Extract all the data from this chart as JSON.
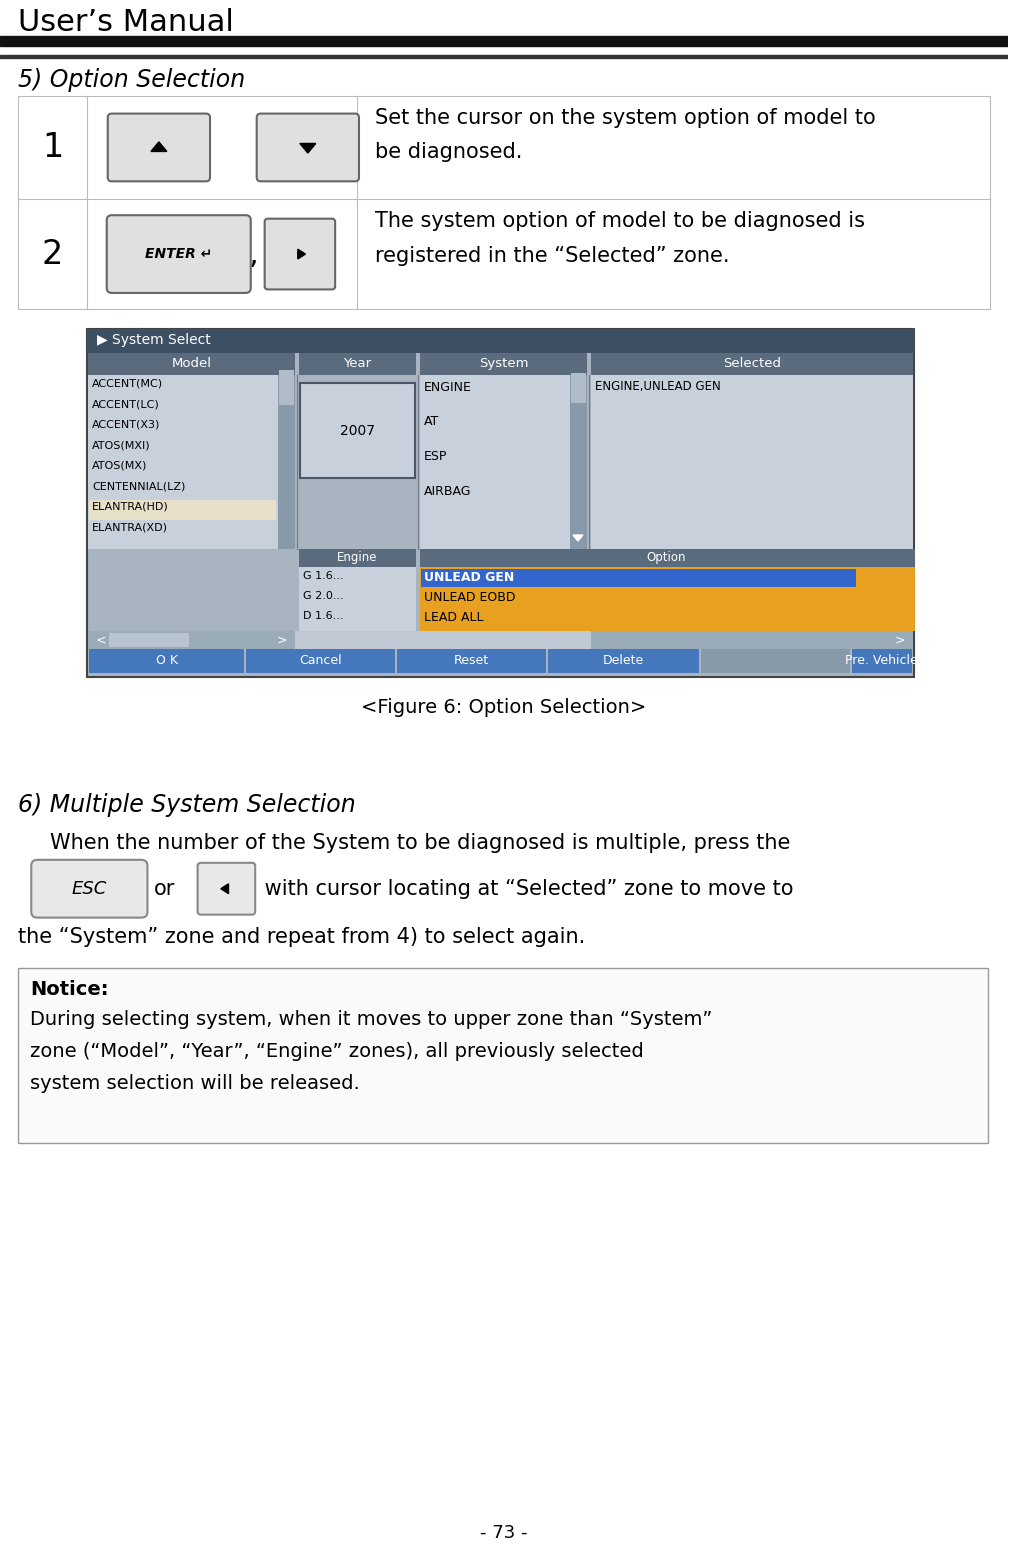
{
  "title": "User’s Manual",
  "page_number": "- 73 -",
  "section5_title": "5) Option Selection",
  "section6_title": "6) Multiple System Selection",
  "row1_number": "1",
  "row2_number": "2",
  "row1_text": "Set the cursor on the system option of model to\nbe diagnosed.",
  "row2_text": "The system option of model to be diagnosed is\nregistered in the “Selected” zone.",
  "figure_caption": "<Figure 6: Option Selection>",
  "section6_para1": "When the number of the System to be diagnosed is multiple, press the",
  "section6_para2a": " or ",
  "section6_para2b": " with cursor locating at “Selected” zone to move to",
  "section6_para3": "the “System” zone and repeat from 4) to select again.",
  "notice_title": "Notice:",
  "notice_text": "During selecting system, when it moves to upper zone than “System”\nzone (“Model”, “Year”, “Engine” zones), all previously selected\nsystem selection will be released.",
  "bg_color": "#ffffff",
  "header_line1_color": "#000000",
  "table_border_color": "#bbbbbb",
  "screen_title_bg": "#3d4f63",
  "screen_header_bg": "#5a6b7d",
  "screen_content_bg": "#a8b4c0",
  "screen_list_bg": "#c0c8d4",
  "screen_highlight_bg": "#e8e0cc",
  "screen_option_blue": "#3366cc",
  "screen_option_orange": "#e8a020",
  "screen_button_blue": "#4477bb",
  "screen_button_gray": "#8899aa",
  "screen_border_outer": "#555555",
  "notice_border": "#999999",
  "notice_bg": "#fafafa"
}
